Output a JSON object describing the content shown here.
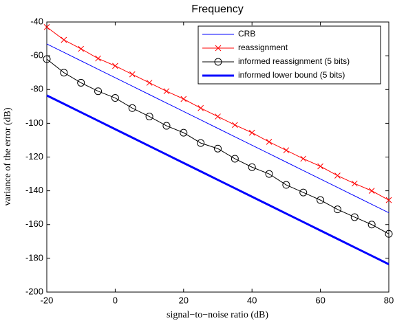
{
  "chart_data": {
    "type": "line",
    "title": "Frequency",
    "xlabel": "signal−to−noise ratio (dB)",
    "ylabel": "variance of the error (dB)",
    "x": [
      -20,
      -15,
      -10,
      -5,
      0,
      5,
      10,
      15,
      20,
      25,
      30,
      35,
      40,
      45,
      50,
      55,
      60,
      65,
      70,
      75,
      80
    ],
    "series": [
      {
        "name": "CRB",
        "color": "#0000ff",
        "marker": "none",
        "linewidth": 1,
        "values": [
          -53,
          -58,
          -63,
          -68,
          -73,
          -78,
          -83,
          -88,
          -93,
          -98,
          -103,
          -108,
          -113,
          -118,
          -123,
          -128,
          -133,
          -138,
          -143,
          -148,
          -153
        ]
      },
      {
        "name": "reassignment",
        "color": "#ff0000",
        "marker": "x",
        "linewidth": 1,
        "values": [
          -43,
          -50.6,
          -55.9,
          -61.6,
          -66,
          -71,
          -76,
          -81,
          -85.6,
          -91,
          -96,
          -101,
          -105.6,
          -111,
          -116,
          -121,
          -125.5,
          -131,
          -135.7,
          -140,
          -145.5
        ]
      },
      {
        "name": "informed reassignment (5 bits)",
        "color": "#000000",
        "marker": "o",
        "linewidth": 1,
        "values": [
          -62,
          -70,
          -76,
          -81,
          -85,
          -91,
          -96,
          -101.5,
          -105.6,
          -111.7,
          -115,
          -121,
          -126,
          -130,
          -136.5,
          -141,
          -145.5,
          -151,
          -155.6,
          -160,
          -165.5
        ]
      },
      {
        "name": "informed lower bound (5 bits)",
        "color": "#0000ff",
        "marker": "none",
        "linewidth": 3,
        "values": [
          -83.5,
          -88.5,
          -93.5,
          -98.5,
          -103.5,
          -108.5,
          -113.5,
          -118.5,
          -123.5,
          -128.5,
          -133.5,
          -138.5,
          -143.5,
          -148.5,
          -153.5,
          -158.5,
          -163.5,
          -168.5,
          -173.5,
          -178.5,
          -183.5
        ]
      }
    ],
    "xlim": [
      -20,
      80
    ],
    "xticks": [
      -20,
      0,
      20,
      40,
      60,
      80
    ],
    "ylim": [
      -200,
      -40
    ],
    "yticks": [
      -200,
      -180,
      -160,
      -140,
      -120,
      -100,
      -80,
      -60,
      -40
    ],
    "legend": "upper right",
    "grid": false
  }
}
